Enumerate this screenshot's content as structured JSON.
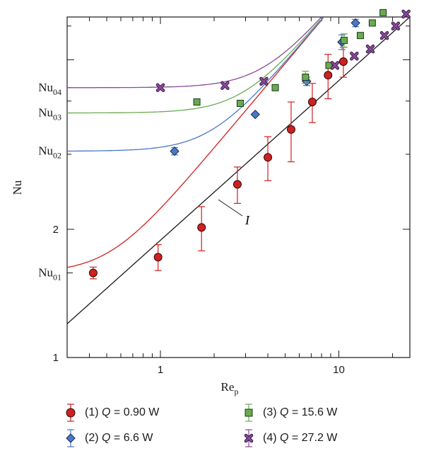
{
  "chart_data": {
    "type": "scatter",
    "x_scale": "log",
    "y_scale": "log",
    "xlabel_main": "Re",
    "xlabel_sub": "p",
    "ylabel": "Nu",
    "xlim": [
      0.3,
      25
    ],
    "ylim": [
      1,
      6.3
    ],
    "x_tick_labels": [
      {
        "value": 1,
        "label": "1"
      },
      {
        "value": 10,
        "label": "10"
      }
    ],
    "y_tick_labels": [
      {
        "value": 1,
        "label": "1"
      },
      {
        "value": 2,
        "label": "2"
      }
    ],
    "y_named_levels": [
      {
        "main": "Nu",
        "sub": "01",
        "value": 1.58
      },
      {
        "main": "Nu",
        "sub": "02",
        "value": 3.05
      },
      {
        "main": "Nu",
        "sub": "03",
        "value": 3.75
      },
      {
        "main": "Nu",
        "sub": "04",
        "value": 4.3
      }
    ],
    "line_label": "I",
    "series": [
      {
        "name": "(1) Q = 0.90 W",
        "num": "(1)",
        "qvalue": "= 0.90 W",
        "color": "#d02020",
        "marker": "circle",
        "nu0": 1.58,
        "x": [
          0.42,
          0.97,
          1.7,
          2.7,
          4.0,
          5.4,
          7.1,
          8.7,
          10.6
        ],
        "y": [
          1.58,
          1.72,
          2.02,
          2.55,
          2.95,
          3.43,
          3.98,
          4.6,
          4.95
        ],
        "err": [
          0.05,
          0.12,
          0.24,
          0.25,
          0.35,
          0.55,
          0.42,
          0.55,
          0.4
        ]
      },
      {
        "name": "(2) Q = 6.6 W",
        "num": "(2)",
        "qvalue": "= 6.6 W",
        "color": "#4a78c8",
        "marker": "diamond",
        "nu0": 3.05,
        "x": [
          1.2,
          3.4,
          6.6,
          10.4,
          12.4
        ],
        "y": [
          3.05,
          3.72,
          4.45,
          5.5,
          6.1
        ],
        "err": [
          0.06,
          0,
          0.1,
          0.22,
          0.12
        ]
      },
      {
        "name": "(3) Q = 15.6 W",
        "num": "(3)",
        "qvalue": "= 15.6 W",
        "color": "#6aaa50",
        "marker": "square",
        "nu0": 3.75,
        "x": [
          1.6,
          2.8,
          4.4,
          6.5,
          8.8,
          10.7,
          13.2,
          15.4,
          17.7
        ],
        "y": [
          3.98,
          3.95,
          4.3,
          4.55,
          4.85,
          5.55,
          5.7,
          6.1,
          6.45
        ],
        "err": [
          0,
          0,
          0,
          0.15,
          0,
          0.2,
          0,
          0,
          0
        ]
      },
      {
        "name": "(4) Q = 27.2 W",
        "num": "(4)",
        "qvalue": "= 27.2 W",
        "color": "#8a4a98",
        "marker": "x",
        "nu0": 4.3,
        "x": [
          1.0,
          2.3,
          3.8,
          9.5,
          12.2,
          15.0,
          18.0,
          20.8,
          23.8
        ],
        "y": [
          4.3,
          4.35,
          4.45,
          4.85,
          5.1,
          5.3,
          5.7,
          6.0,
          6.4
        ],
        "err": [
          0,
          0,
          0,
          0,
          0,
          0,
          0,
          0,
          0
        ]
      }
    ],
    "diagonal": {
      "x0": 0.3,
      "y0": 1.2,
      "exponent": 0.5
    }
  }
}
